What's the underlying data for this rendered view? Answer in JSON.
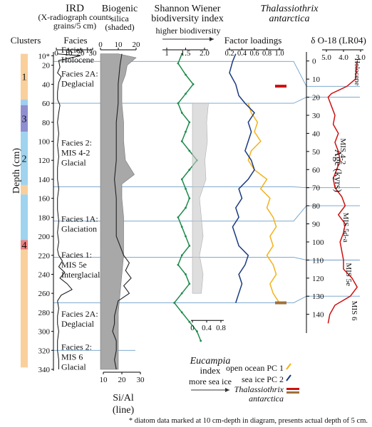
{
  "chart_data": {
    "type": "line",
    "headers": {
      "ird_title": "IRD",
      "ird_sub1": "(X-radiograph counts",
      "ird_sub2": "grains/5 cm)",
      "facies_title": "Facies",
      "clusters_title": "Clusters",
      "bsi_title": "Biogenic",
      "bsi_sub1": "silica",
      "bsi_sub2": "(shaded)",
      "shannon_title1": "Shannon Wiener",
      "shannon_title2": "biodiversity index",
      "shannon_arrow": "higher biodiversity",
      "thal_title1": "Thalassiothrix",
      "thal_title2": "antarctica",
      "factor_title": "Factor loadings",
      "d18o_title": "δ O-18 (LR04)",
      "age_axis_label": "Age (kyrs)",
      "depth_axis_label": "Depth (cm)",
      "sial_label1": "Si/Al",
      "sial_label2": "(line)",
      "eucampia_title1": "Eucampia",
      "eucampia_title2": "index",
      "eucampia_arrow": "more sea ice"
    },
    "axes": {
      "ird_ticks": [
        "0",
        "10",
        "20",
        "30"
      ],
      "bsi_ticks": [
        "0",
        "10",
        "20"
      ],
      "sial_ticks": [
        "10",
        "20",
        "30"
      ],
      "shannon_ticks": [
        "1",
        "1.5",
        "2.0"
      ],
      "factor_ticks": [
        "0.2",
        "0.4",
        "0.6",
        "0.8",
        "1.0"
      ],
      "d18o_ticks": [
        "5.0",
        "4.0",
        "3.0"
      ],
      "eucampia_ticks": [
        "0",
        "0.4",
        "0.8"
      ],
      "depth_ticks": [
        "10*",
        "20",
        "40",
        "60",
        "80",
        "100",
        "120",
        "140",
        "160",
        "180",
        "200",
        "220",
        "240",
        "260",
        "280",
        "300",
        "320",
        "340"
      ],
      "age_ticks": [
        "0",
        "10",
        "20",
        "30",
        "40",
        "50",
        "60",
        "70",
        "80",
        "90",
        "100",
        "110",
        "120",
        "130",
        "140"
      ],
      "depth_range": [
        6,
        346
      ],
      "age_range": [
        -5,
        148
      ]
    },
    "facies": [
      {
        "depth": 12,
        "lines": [
          "Facies 1:",
          "Holocene"
        ]
      },
      {
        "depth": 37,
        "lines": [
          "Facies 2A:",
          "Deglacial"
        ]
      },
      {
        "depth": 115,
        "lines": [
          "Facies 2:",
          "MIS 4-2",
          "Glacial"
        ]
      },
      {
        "depth": 190,
        "lines": [
          "Facies 1A:",
          "Glaciation"
        ]
      },
      {
        "depth": 233,
        "lines": [
          "Facies 1:",
          "MIS 5e",
          "Interglacial"
        ]
      },
      {
        "depth": 290,
        "lines": [
          "Facies 2A:",
          "Deglacial"
        ]
      },
      {
        "depth": 330,
        "lines": [
          "Facies 2:",
          "MIS 6",
          "Glacial"
        ]
      }
    ],
    "clusters": [
      {
        "label": "1",
        "from": 8,
        "to": 56,
        "color": "#f9cf9c"
      },
      {
        "label": "",
        "from": 56,
        "to": 62,
        "color": "#9ecfee"
      },
      {
        "label": "3",
        "from": 62,
        "to": 90,
        "color": "#8e8ed1"
      },
      {
        "label": "2",
        "from": 90,
        "to": 146,
        "color": "#9fd3ee"
      },
      {
        "label": "",
        "from": 146,
        "to": 156,
        "color": "#f9cf9c"
      },
      {
        "label": "",
        "from": 156,
        "to": 204,
        "color": "#9fd3ee"
      },
      {
        "label": "4",
        "from": 204,
        "to": 214,
        "color": "#ec7f7f"
      },
      {
        "label": "",
        "from": 214,
        "to": 338,
        "color": "#f9cf9c"
      }
    ],
    "ird": {
      "depth": [
        8,
        10,
        15,
        22,
        28,
        32,
        38,
        48,
        56,
        62,
        70,
        80,
        92,
        104,
        116,
        128,
        140,
        150,
        160,
        172,
        184,
        196,
        206,
        214,
        220,
        226,
        232,
        238,
        244,
        250,
        256,
        262,
        268,
        276,
        284,
        292,
        300,
        310,
        320,
        330,
        340
      ],
      "values": [
        1,
        20,
        2,
        3,
        1,
        4,
        2,
        1,
        1,
        3,
        2,
        1,
        2,
        1,
        2,
        1,
        1,
        2,
        1,
        1,
        2,
        1,
        2,
        1,
        2,
        5,
        2,
        7,
        3,
        9,
        13,
        4,
        1,
        2,
        1,
        1,
        2,
        1,
        1,
        2,
        2
      ]
    },
    "biogenic_silica": {
      "depth": [
        8,
        12,
        20,
        30,
        40,
        60,
        80,
        100,
        120,
        135,
        145,
        160,
        180,
        200,
        220,
        240,
        260,
        280,
        300,
        320,
        340
      ],
      "values": [
        10,
        20,
        15,
        14,
        12,
        12,
        13,
        13,
        14,
        19,
        12,
        12,
        13,
        13,
        13,
        12,
        11,
        10,
        10,
        10,
        10
      ]
    },
    "si_al": {
      "depth": [
        8,
        20,
        40,
        60,
        80,
        100,
        120,
        140,
        160,
        180,
        200,
        210,
        220,
        228,
        236,
        244,
        252,
        260,
        268,
        276,
        284,
        292,
        300,
        310,
        320,
        330,
        340
      ],
      "values": [
        20,
        19,
        18,
        18,
        17,
        17,
        17,
        16,
        17,
        17,
        17,
        19,
        21,
        24,
        22,
        25,
        21,
        24,
        18,
        17,
        16,
        16,
        15,
        17,
        17,
        16,
        17
      ]
    },
    "series": [
      {
        "name": "",
        "color": "#1e8a4c",
        "depth": [
          8,
          18,
          30,
          40,
          50,
          60,
          70,
          80,
          90,
          100,
          110,
          120,
          130,
          140,
          150,
          160,
          170,
          180,
          190,
          200,
          210,
          220,
          230,
          240,
          250,
          260,
          270,
          280,
          290,
          300,
          310
        ],
        "values": [
          1.4,
          1.3,
          1.5,
          1.7,
          1.5,
          1.3,
          1.4,
          1.6,
          1.5,
          1.4,
          1.6,
          1.8,
          1.6,
          1.4,
          1.5,
          1.6,
          1.5,
          1.3,
          1.4,
          1.5,
          1.6,
          1.4,
          1.3,
          1.5,
          1.6,
          1.4,
          1.2,
          1.4,
          1.6,
          1.8,
          1.9
        ]
      },
      {
        "name": "open ocean PC 1",
        "color": "#f2b21c",
        "depth": [
          60,
          70,
          80,
          90,
          100,
          110,
          120,
          130,
          140,
          150,
          160,
          170,
          180,
          190,
          200,
          210,
          220,
          230,
          240,
          250,
          260,
          270
        ],
        "values": [
          0.5,
          0.55,
          0.65,
          0.6,
          0.7,
          0.55,
          0.5,
          0.6,
          0.8,
          0.7,
          0.85,
          0.8,
          0.9,
          0.95,
          0.85,
          0.9,
          0.8,
          0.9,
          0.95,
          0.85,
          0.9,
          1.0
        ]
      },
      {
        "name": "sea ice PC 2",
        "color": "#1a3a80",
        "depth": [
          8,
          16,
          28,
          40,
          52,
          60,
          70,
          80,
          90,
          100,
          110,
          120,
          130,
          140,
          150,
          160,
          170,
          180,
          190,
          200,
          210,
          220,
          230,
          240,
          250,
          260,
          270
        ],
        "values": [
          0.3,
          0.25,
          0.2,
          0.3,
          0.35,
          0.45,
          0.6,
          0.5,
          0.55,
          0.5,
          0.45,
          0.55,
          0.6,
          0.5,
          0.35,
          0.4,
          0.3,
          0.35,
          0.25,
          0.3,
          0.35,
          0.5,
          0.45,
          0.35,
          0.4,
          0.35,
          0.3
        ]
      },
      {
        "name": "Eucampia index",
        "color": "#c8c8c8",
        "depth": [
          60,
          80,
          100,
          120,
          140,
          160,
          180,
          200,
          220,
          240,
          260
        ],
        "values": [
          0.45,
          0.4,
          0.42,
          0.35,
          0.38,
          0.2,
          0.25,
          0.3,
          0.2,
          0.3,
          0.25
        ]
      },
      {
        "name": "δ O-18 (LR04)",
        "color": "#cc1111",
        "age": [
          0,
          5,
          10,
          14,
          18,
          20,
          25,
          30,
          35,
          40,
          45,
          50,
          55,
          60,
          65,
          70,
          75,
          80,
          85,
          90,
          95,
          100,
          105,
          110,
          115,
          120,
          125,
          130,
          135,
          140,
          145
        ],
        "values": [
          3.2,
          3.25,
          3.3,
          3.8,
          4.7,
          4.9,
          4.7,
          4.5,
          4.6,
          4.3,
          4.5,
          4.3,
          4.2,
          4.4,
          4.6,
          4.5,
          4.1,
          3.9,
          4.3,
          3.9,
          4.0,
          4.2,
          4.1,
          4.0,
          4.0,
          3.5,
          3.2,
          3.6,
          4.5,
          4.8,
          4.9
        ]
      }
    ],
    "thalassiothrix_marks": [
      {
        "depth": 42,
        "color": "#cc1111"
      },
      {
        "depth": 270,
        "color": "#a0703a"
      }
    ],
    "annotations": {
      "mis_holocene": "Holocene",
      "mis_42": "MIS 4-2",
      "mis_5a": "MIS 5d-a",
      "mis_5e": "MIS 5e",
      "mis_6": "MIS 6",
      "legend_pc1": "open ocean PC 1",
      "legend_pc2": "sea ice PC 2",
      "legend_thal1": "Thalassiothrix",
      "legend_thal2": "antarctica",
      "footnote": "* diatom data marked at 10 cm-depth in diagram, presents actual depth of 5 cm."
    },
    "tie_lines": [
      {
        "depth": 16,
        "age": 14
      },
      {
        "depth": 60,
        "age": 20
      },
      {
        "depth": 148,
        "age": 70
      },
      {
        "depth": 184,
        "age": 80
      },
      {
        "depth": 222,
        "age": 110
      },
      {
        "depth": 270,
        "age": 130
      }
    ]
  }
}
